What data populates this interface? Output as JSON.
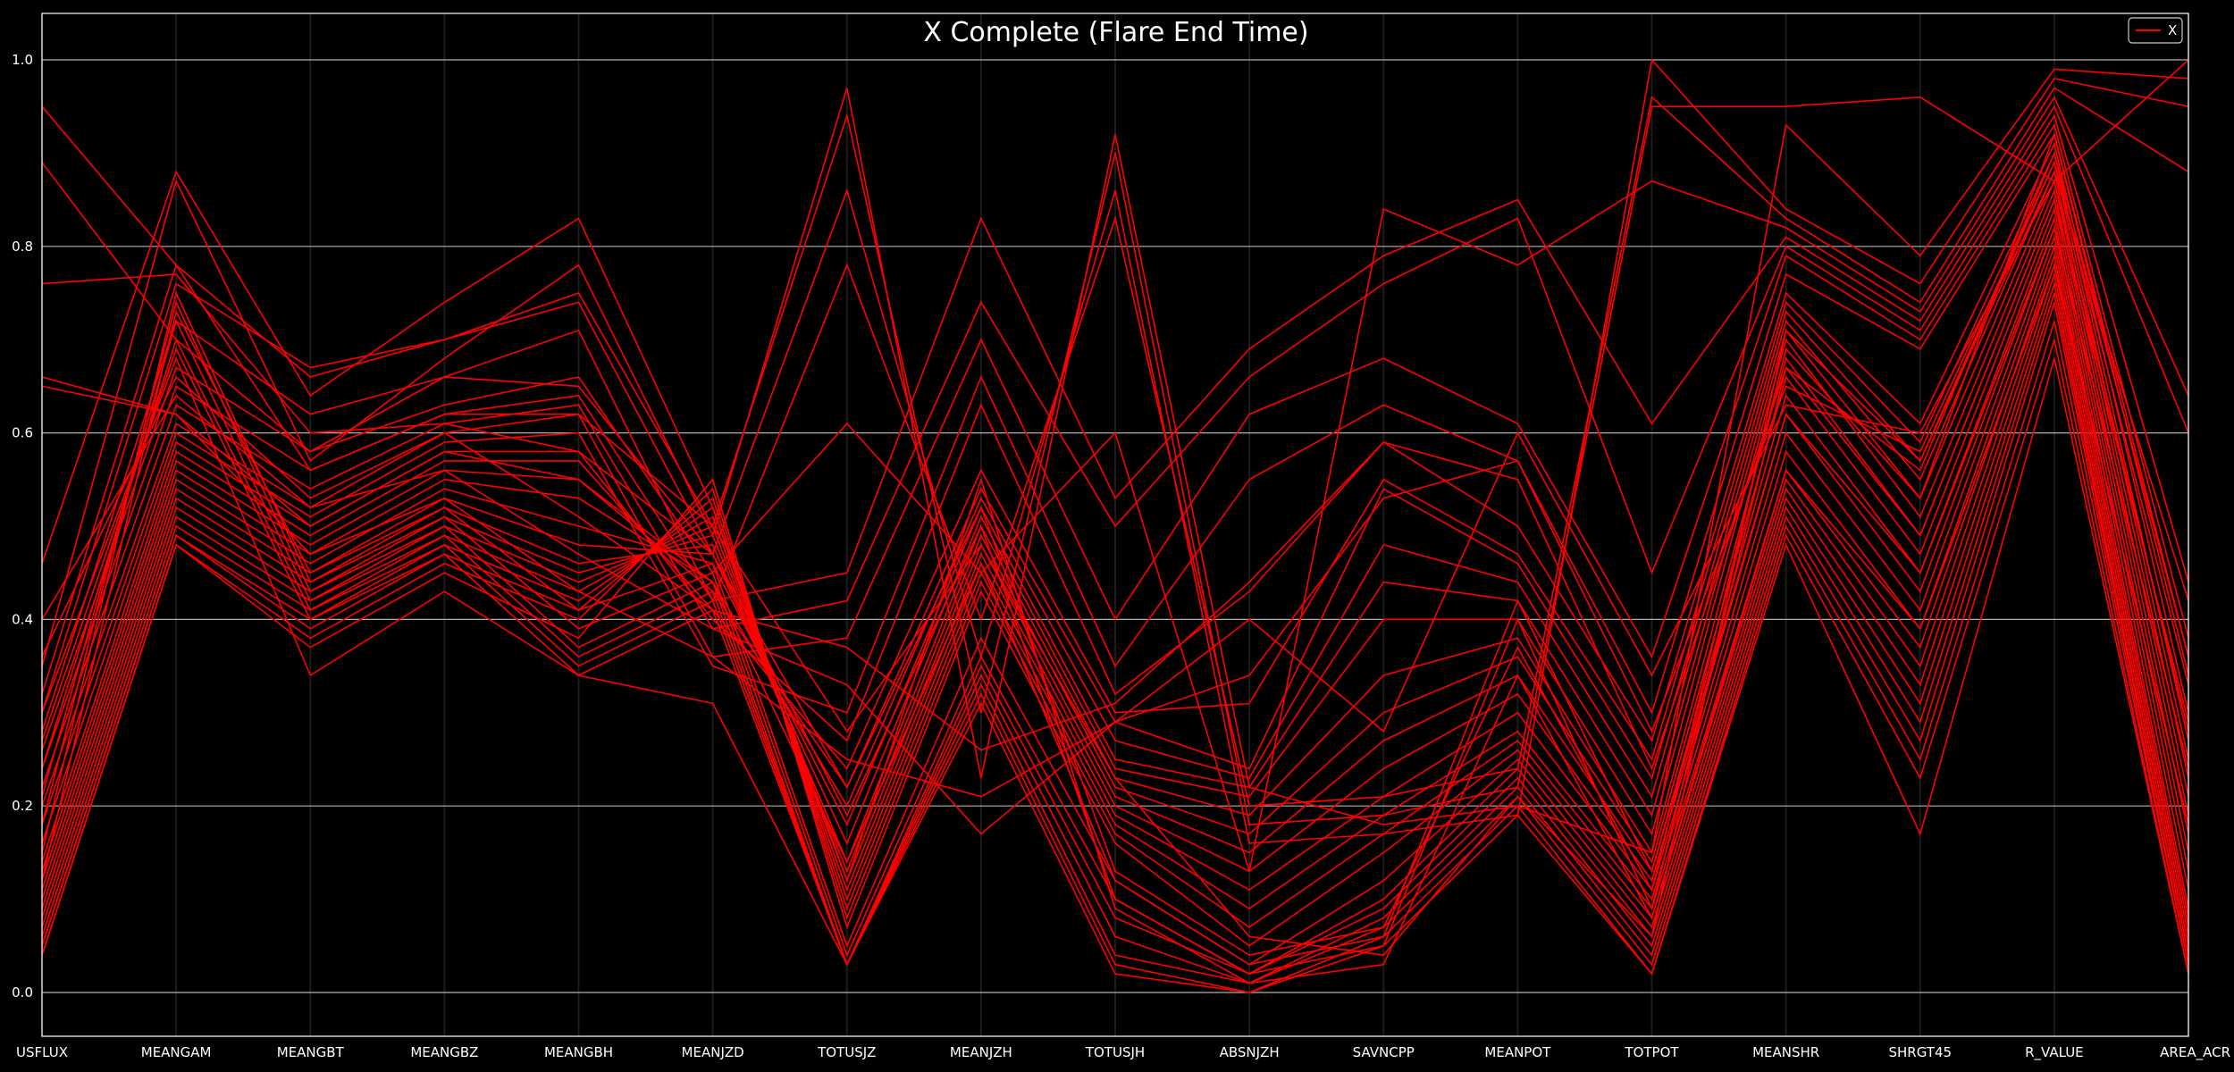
{
  "chart_data": {
    "type": "parallel-coordinates",
    "title": "X Complete (Flare End Time)",
    "dimensions": [
      "USFLUX",
      "MEANGAM",
      "MEANGBT",
      "MEANGBZ",
      "MEANGBH",
      "MEANJZD",
      "TOTUSJZ",
      "MEANJZH",
      "TOTUSJH",
      "ABSNJZH",
      "SAVNCPP",
      "MEANPOT",
      "TOTPOT",
      "MEANSHR",
      "SHRGT45",
      "R_VALUE",
      "AREA_ACR"
    ],
    "ylim": [
      0.0,
      1.0
    ],
    "yticks": [
      "0.0",
      "0.2",
      "0.4",
      "0.6",
      "0.8",
      "1.0"
    ],
    "grid": "horizontal",
    "legend": {
      "placement": "top-right",
      "entries": [
        {
          "label": "X",
          "color": "#ff0000"
        }
      ]
    },
    "series_color": "#ff0000",
    "series": [
      {
        "values": [
          0.95,
          0.78,
          0.56,
          0.62,
          0.62,
          0.5,
          0.28,
          0.48,
          0.23,
          0.06,
          0.04,
          0.21,
          0.06,
          0.71,
          0.57,
          0.88,
          0.42
        ]
      },
      {
        "values": [
          0.89,
          0.7,
          0.58,
          0.66,
          0.65,
          0.47,
          0.22,
          0.52,
          0.13,
          0.04,
          0.07,
          0.37,
          0.11,
          0.69,
          0.53,
          0.92,
          0.36
        ]
      },
      {
        "values": [
          0.76,
          0.77,
          0.6,
          0.61,
          0.58,
          0.47,
          0.19,
          0.5,
          0.1,
          0.02,
          0.05,
          0.4,
          0.09,
          0.67,
          0.49,
          0.85,
          0.29
        ]
      },
      {
        "values": [
          0.66,
          0.62,
          0.5,
          0.58,
          0.55,
          0.44,
          0.14,
          0.46,
          0.12,
          0.03,
          0.06,
          0.42,
          0.13,
          0.62,
          0.45,
          0.82,
          0.24
        ]
      },
      {
        "values": [
          0.46,
          0.88,
          0.64,
          0.74,
          0.83,
          0.52,
          0.12,
          0.55,
          0.09,
          0.01,
          0.03,
          0.34,
          0.08,
          0.56,
          0.39,
          0.78,
          0.18
        ]
      },
      {
        "values": [
          0.35,
          0.87,
          0.57,
          0.68,
          0.78,
          0.49,
          0.97,
          0.23,
          0.92,
          0.22,
          0.18,
          0.2,
          0.15,
          0.93,
          0.79,
          0.99,
          0.98
        ]
      },
      {
        "values": [
          0.32,
          0.78,
          0.66,
          0.7,
          0.75,
          0.5,
          0.94,
          0.3,
          0.9,
          0.18,
          0.19,
          0.22,
          0.95,
          0.95,
          0.96,
          0.87,
          1.0
        ]
      },
      {
        "values": [
          0.3,
          0.76,
          0.67,
          0.7,
          0.74,
          0.47,
          0.86,
          0.36,
          0.86,
          0.16,
          0.17,
          0.19,
          1.0,
          0.84,
          0.76,
          0.98,
          0.95
        ]
      },
      {
        "values": [
          0.28,
          0.72,
          0.62,
          0.66,
          0.71,
          0.42,
          0.78,
          0.4,
          0.83,
          0.2,
          0.21,
          0.24,
          0.96,
          0.83,
          0.74,
          0.97,
          0.88
        ]
      },
      {
        "values": [
          0.26,
          0.67,
          0.58,
          0.63,
          0.66,
          0.45,
          0.61,
          0.45,
          0.6,
          0.13,
          0.84,
          0.78,
          0.87,
          0.82,
          0.73,
          0.96,
          0.64
        ]
      },
      {
        "values": [
          0.24,
          0.65,
          0.56,
          0.62,
          0.64,
          0.42,
          0.45,
          0.83,
          0.53,
          0.69,
          0.79,
          0.85,
          0.61,
          0.81,
          0.72,
          0.95,
          0.6
        ]
      },
      {
        "values": [
          0.22,
          0.63,
          0.54,
          0.61,
          0.63,
          0.39,
          0.42,
          0.74,
          0.5,
          0.66,
          0.76,
          0.83,
          0.45,
          0.8,
          0.71,
          0.94,
          0.44
        ]
      },
      {
        "values": [
          0.2,
          0.61,
          0.52,
          0.6,
          0.62,
          0.36,
          0.38,
          0.7,
          0.4,
          0.62,
          0.68,
          0.61,
          0.36,
          0.79,
          0.7,
          0.93,
          0.38
        ]
      },
      {
        "values": [
          0.18,
          0.6,
          0.51,
          0.59,
          0.6,
          0.35,
          0.3,
          0.66,
          0.35,
          0.55,
          0.63,
          0.57,
          0.3,
          0.77,
          0.69,
          0.92,
          0.34
        ]
      },
      {
        "values": [
          0.16,
          0.59,
          0.5,
          0.58,
          0.58,
          0.4,
          0.27,
          0.63,
          0.32,
          0.43,
          0.59,
          0.5,
          0.27,
          0.75,
          0.61,
          0.91,
          0.3
        ]
      },
      {
        "values": [
          0.14,
          0.58,
          0.49,
          0.57,
          0.57,
          0.41,
          0.24,
          0.56,
          0.3,
          0.31,
          0.55,
          0.47,
          0.25,
          0.74,
          0.59,
          0.9,
          0.27
        ]
      },
      {
        "values": [
          0.13,
          0.57,
          0.48,
          0.56,
          0.55,
          0.43,
          0.22,
          0.54,
          0.29,
          0.24,
          0.54,
          0.46,
          0.23,
          0.73,
          0.57,
          0.89,
          0.25
        ]
      },
      {
        "values": [
          0.12,
          0.56,
          0.47,
          0.55,
          0.53,
          0.44,
          0.2,
          0.53,
          0.27,
          0.23,
          0.48,
          0.44,
          0.21,
          0.72,
          0.55,
          0.88,
          0.23
        ]
      },
      {
        "values": [
          0.11,
          0.55,
          0.46,
          0.54,
          0.5,
          0.46,
          0.18,
          0.52,
          0.25,
          0.22,
          0.44,
          0.42,
          0.19,
          0.71,
          0.53,
          0.87,
          0.21
        ]
      },
      {
        "values": [
          0.1,
          0.54,
          0.45,
          0.53,
          0.48,
          0.47,
          0.16,
          0.51,
          0.24,
          0.21,
          0.4,
          0.4,
          0.17,
          0.7,
          0.51,
          0.86,
          0.19
        ]
      },
      {
        "values": [
          0.09,
          0.53,
          0.44,
          0.52,
          0.46,
          0.48,
          0.14,
          0.5,
          0.23,
          0.19,
          0.34,
          0.38,
          0.15,
          0.68,
          0.49,
          0.85,
          0.17
        ]
      },
      {
        "values": [
          0.08,
          0.52,
          0.43,
          0.51,
          0.45,
          0.49,
          0.13,
          0.49,
          0.22,
          0.17,
          0.3,
          0.36,
          0.14,
          0.66,
          0.47,
          0.84,
          0.15
        ]
      },
      {
        "values": [
          0.07,
          0.51,
          0.42,
          0.5,
          0.44,
          0.5,
          0.12,
          0.48,
          0.21,
          0.15,
          0.27,
          0.34,
          0.13,
          0.64,
          0.45,
          0.83,
          0.13
        ]
      },
      {
        "values": [
          0.06,
          0.5,
          0.41,
          0.49,
          0.43,
          0.51,
          0.11,
          0.47,
          0.2,
          0.13,
          0.24,
          0.32,
          0.12,
          0.62,
          0.43,
          0.82,
          0.11
        ]
      },
      {
        "values": [
          0.05,
          0.49,
          0.4,
          0.48,
          0.42,
          0.52,
          0.1,
          0.46,
          0.19,
          0.11,
          0.21,
          0.3,
          0.11,
          0.6,
          0.41,
          0.81,
          0.09
        ]
      },
      {
        "values": [
          0.05,
          0.49,
          0.39,
          0.47,
          0.41,
          0.53,
          0.09,
          0.45,
          0.18,
          0.09,
          0.19,
          0.28,
          0.1,
          0.58,
          0.39,
          0.8,
          0.08
        ]
      },
      {
        "values": [
          0.04,
          0.48,
          0.38,
          0.46,
          0.4,
          0.54,
          0.08,
          0.44,
          0.17,
          0.07,
          0.17,
          0.27,
          0.09,
          0.56,
          0.37,
          0.79,
          0.07
        ]
      },
      {
        "values": [
          0.04,
          0.48,
          0.37,
          0.45,
          0.38,
          0.55,
          0.07,
          0.43,
          0.16,
          0.05,
          0.15,
          0.26,
          0.08,
          0.55,
          0.35,
          0.78,
          0.06
        ]
      },
      {
        "values": [
          0.12,
          0.73,
          0.45,
          0.52,
          0.41,
          0.46,
          0.05,
          0.38,
          0.12,
          0.03,
          0.12,
          0.25,
          0.07,
          0.54,
          0.33,
          0.77,
          0.05
        ]
      },
      {
        "values": [
          0.15,
          0.75,
          0.44,
          0.51,
          0.39,
          0.45,
          0.04,
          0.36,
          0.1,
          0.02,
          0.1,
          0.24,
          0.06,
          0.53,
          0.31,
          0.76,
          0.04
        ]
      },
      {
        "values": [
          0.18,
          0.74,
          0.43,
          0.5,
          0.37,
          0.44,
          0.03,
          0.35,
          0.08,
          0.02,
          0.09,
          0.23,
          0.05,
          0.52,
          0.29,
          0.75,
          0.04
        ]
      },
      {
        "values": [
          0.21,
          0.72,
          0.42,
          0.49,
          0.36,
          0.43,
          0.03,
          0.34,
          0.06,
          0.01,
          0.08,
          0.22,
          0.04,
          0.51,
          0.27,
          0.74,
          0.03
        ]
      },
      {
        "values": [
          0.24,
          0.7,
          0.41,
          0.48,
          0.35,
          0.42,
          0.03,
          0.33,
          0.04,
          0.01,
          0.07,
          0.21,
          0.03,
          0.5,
          0.25,
          0.72,
          0.03
        ]
      },
      {
        "values": [
          0.27,
          0.69,
          0.4,
          0.47,
          0.34,
          0.41,
          0.03,
          0.32,
          0.03,
          0.0,
          0.06,
          0.2,
          0.02,
          0.49,
          0.23,
          0.7,
          0.02
        ]
      },
      {
        "values": [
          0.3,
          0.68,
          0.34,
          0.43,
          0.34,
          0.31,
          0.03,
          0.31,
          0.02,
          0.0,
          0.05,
          0.19,
          0.02,
          0.48,
          0.17,
          0.68,
          0.02
        ]
      },
      {
        "values": [
          0.65,
          0.62,
          0.47,
          0.53,
          0.43,
          0.36,
          0.25,
          0.21,
          0.29,
          0.4,
          0.28,
          0.6,
          0.34,
          0.63,
          0.6,
          0.87,
          0.28
        ]
      },
      {
        "values": [
          0.4,
          0.64,
          0.52,
          0.56,
          0.47,
          0.39,
          0.33,
          0.17,
          0.29,
          0.34,
          0.53,
          0.57,
          0.28,
          0.65,
          0.58,
          0.89,
          0.33
        ]
      },
      {
        "values": [
          0.36,
          0.66,
          0.53,
          0.6,
          0.51,
          0.41,
          0.37,
          0.26,
          0.31,
          0.44,
          0.59,
          0.55,
          0.24,
          0.67,
          0.56,
          0.9,
          0.36
        ]
      }
    ]
  }
}
